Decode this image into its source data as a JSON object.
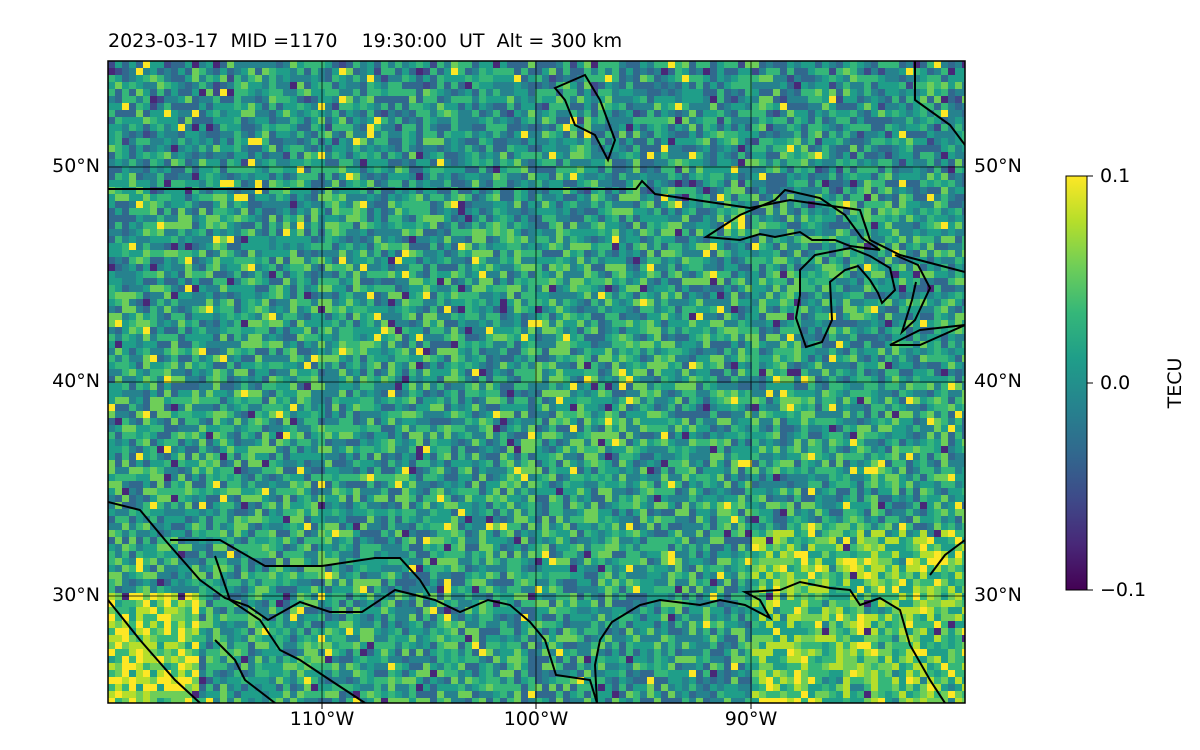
{
  "title": "2023-03-17  MID =1170    19:30:00  UT  Alt = 300 km",
  "lat_ticks": [
    "50°N",
    "40°N",
    "30°N"
  ],
  "lon_ticks": [
    "110°W",
    "100°W",
    "90°W"
  ],
  "colorbar": {
    "label": "TECU",
    "ticks": [
      "0.1",
      "0.0",
      "−0.1"
    ],
    "colors": [
      "#440154",
      "#482878",
      "#3e4a89",
      "#31688e",
      "#26828e",
      "#1f9e89",
      "#35b779",
      "#6ece58",
      "#b5de2b",
      "#fde725"
    ]
  }
}
